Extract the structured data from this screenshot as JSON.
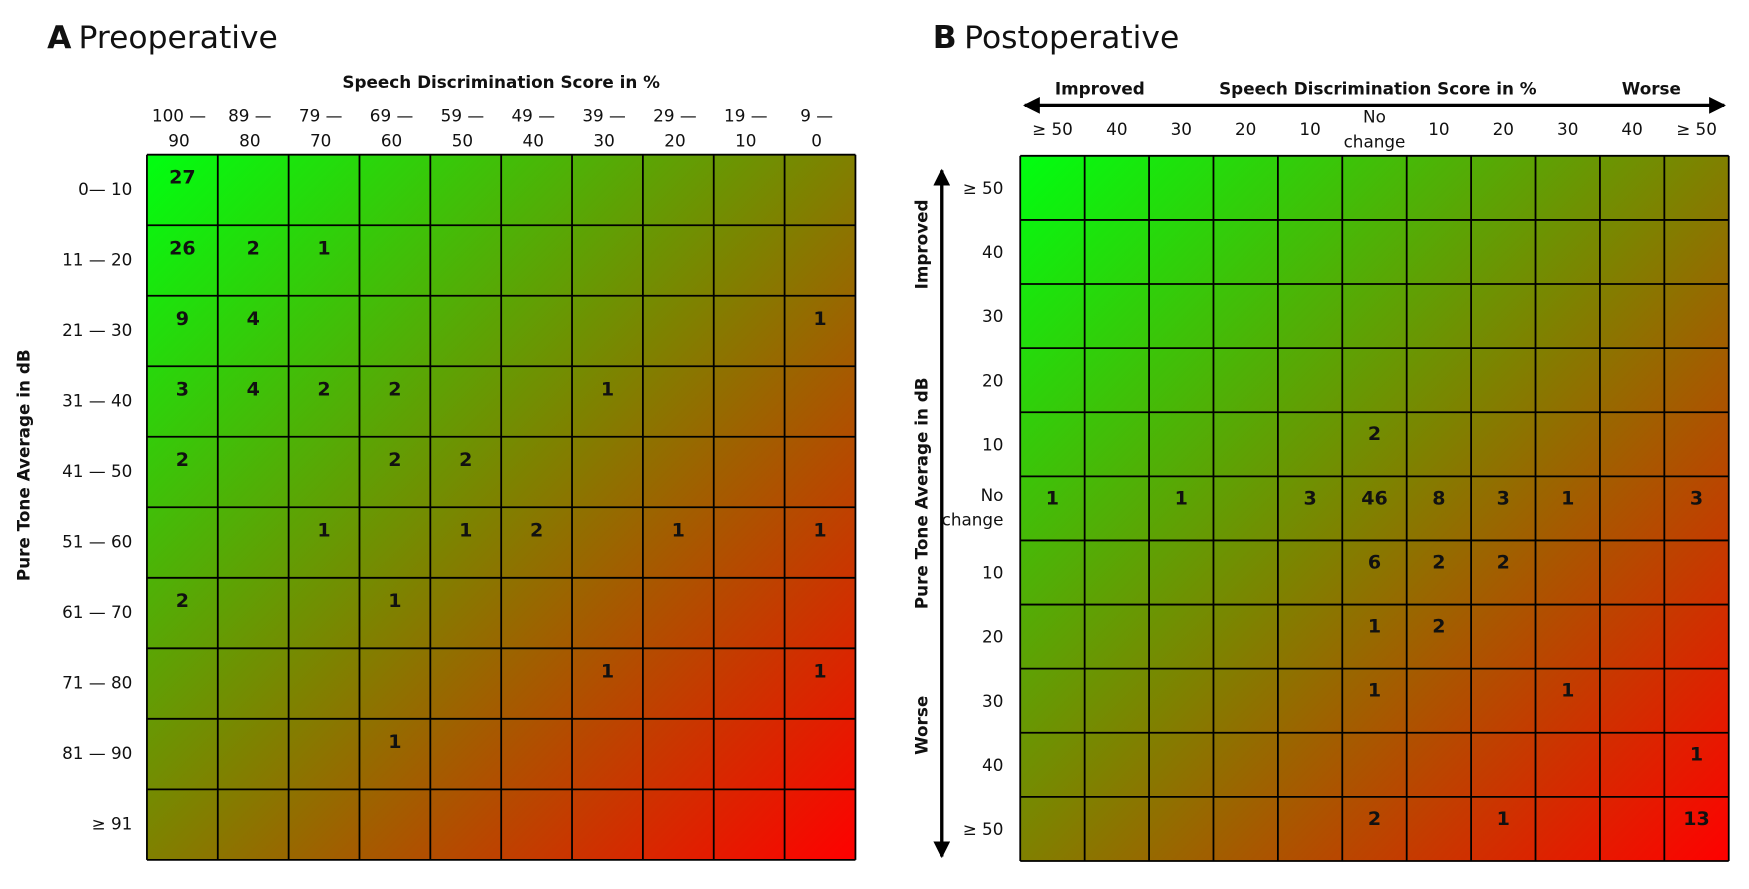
{
  "panels": [
    {
      "label": "A",
      "title": "Preoperative",
      "x_axis_title": "Speech Discrimination Score in %",
      "y_axis_title": "Pure Tone Average in dB",
      "columns": [
        [
          "100 —",
          "90"
        ],
        [
          "89 —",
          "80"
        ],
        [
          "79 —",
          "70"
        ],
        [
          "69 —",
          "60"
        ],
        [
          "59 —",
          "50"
        ],
        [
          "49 —",
          "40"
        ],
        [
          "39 —",
          "30"
        ],
        [
          "29 —",
          "20"
        ],
        [
          "19 —",
          "10"
        ],
        [
          "9 —",
          "0"
        ]
      ],
      "rows": [
        "0— 10",
        "11 — 20",
        "21 — 30",
        "31 — 40",
        "41 — 50",
        "51 — 60",
        "61 — 70",
        "71 — 80",
        "81 — 90",
        "≥ 91"
      ],
      "cells": [
        [
          27,
          null,
          null,
          null,
          null,
          null,
          null,
          null,
          null,
          null
        ],
        [
          26,
          2,
          1,
          null,
          null,
          null,
          null,
          null,
          null,
          null
        ],
        [
          9,
          4,
          null,
          null,
          null,
          null,
          null,
          null,
          null,
          1
        ],
        [
          3,
          4,
          2,
          2,
          null,
          null,
          1,
          null,
          null,
          null
        ],
        [
          2,
          null,
          null,
          2,
          2,
          null,
          null,
          null,
          null,
          null
        ],
        [
          null,
          null,
          1,
          null,
          1,
          2,
          null,
          1,
          null,
          1
        ],
        [
          2,
          null,
          null,
          1,
          null,
          null,
          null,
          null,
          null,
          null
        ],
        [
          null,
          null,
          null,
          null,
          null,
          null,
          1,
          null,
          null,
          1
        ],
        [
          null,
          null,
          null,
          1,
          null,
          null,
          null,
          null,
          null,
          null
        ],
        [
          null,
          null,
          null,
          null,
          null,
          null,
          null,
          null,
          null,
          null
        ]
      ]
    },
    {
      "label": "B",
      "title": "Postoperative",
      "x_axis_title": "Speech Discrimination Score in %",
      "y_axis_title": "Pure Tone Average in dB",
      "x_left": "Improved",
      "x_right": "Worse",
      "y_top": "Improved",
      "y_bottom": "Worse",
      "columns": [
        [
          "≥ 50"
        ],
        [
          "40"
        ],
        [
          "30"
        ],
        [
          "20"
        ],
        [
          "10"
        ],
        [
          "No",
          "change"
        ],
        [
          "10"
        ],
        [
          "20"
        ],
        [
          "30"
        ],
        [
          "40"
        ],
        [
          "≥ 50"
        ]
      ],
      "rows": [
        [
          "≥ 50"
        ],
        [
          "40"
        ],
        [
          "30"
        ],
        [
          "20"
        ],
        [
          "10"
        ],
        [
          "No",
          "change"
        ],
        [
          "10"
        ],
        [
          "20"
        ],
        [
          "30"
        ],
        [
          "40"
        ],
        [
          "≥ 50"
        ]
      ],
      "cells": [
        [
          null,
          null,
          null,
          null,
          null,
          null,
          null,
          null,
          null,
          null,
          null
        ],
        [
          null,
          null,
          null,
          null,
          null,
          null,
          null,
          null,
          null,
          null,
          null
        ],
        [
          null,
          null,
          null,
          null,
          null,
          null,
          null,
          null,
          null,
          null,
          null
        ],
        [
          null,
          null,
          null,
          null,
          null,
          null,
          null,
          null,
          null,
          null,
          null
        ],
        [
          null,
          null,
          null,
          null,
          null,
          2,
          null,
          null,
          null,
          null,
          null
        ],
        [
          1,
          null,
          1,
          null,
          3,
          46,
          8,
          3,
          1,
          null,
          3
        ],
        [
          null,
          null,
          null,
          null,
          null,
          6,
          2,
          2,
          null,
          null,
          null
        ],
        [
          null,
          null,
          null,
          null,
          null,
          1,
          2,
          null,
          null,
          null,
          null
        ],
        [
          null,
          null,
          null,
          null,
          null,
          1,
          null,
          null,
          1,
          null,
          null
        ],
        [
          null,
          null,
          null,
          null,
          null,
          null,
          null,
          null,
          null,
          null,
          1
        ],
        [
          null,
          null,
          null,
          null,
          null,
          2,
          null,
          1,
          null,
          null,
          13
        ]
      ]
    }
  ]
}
